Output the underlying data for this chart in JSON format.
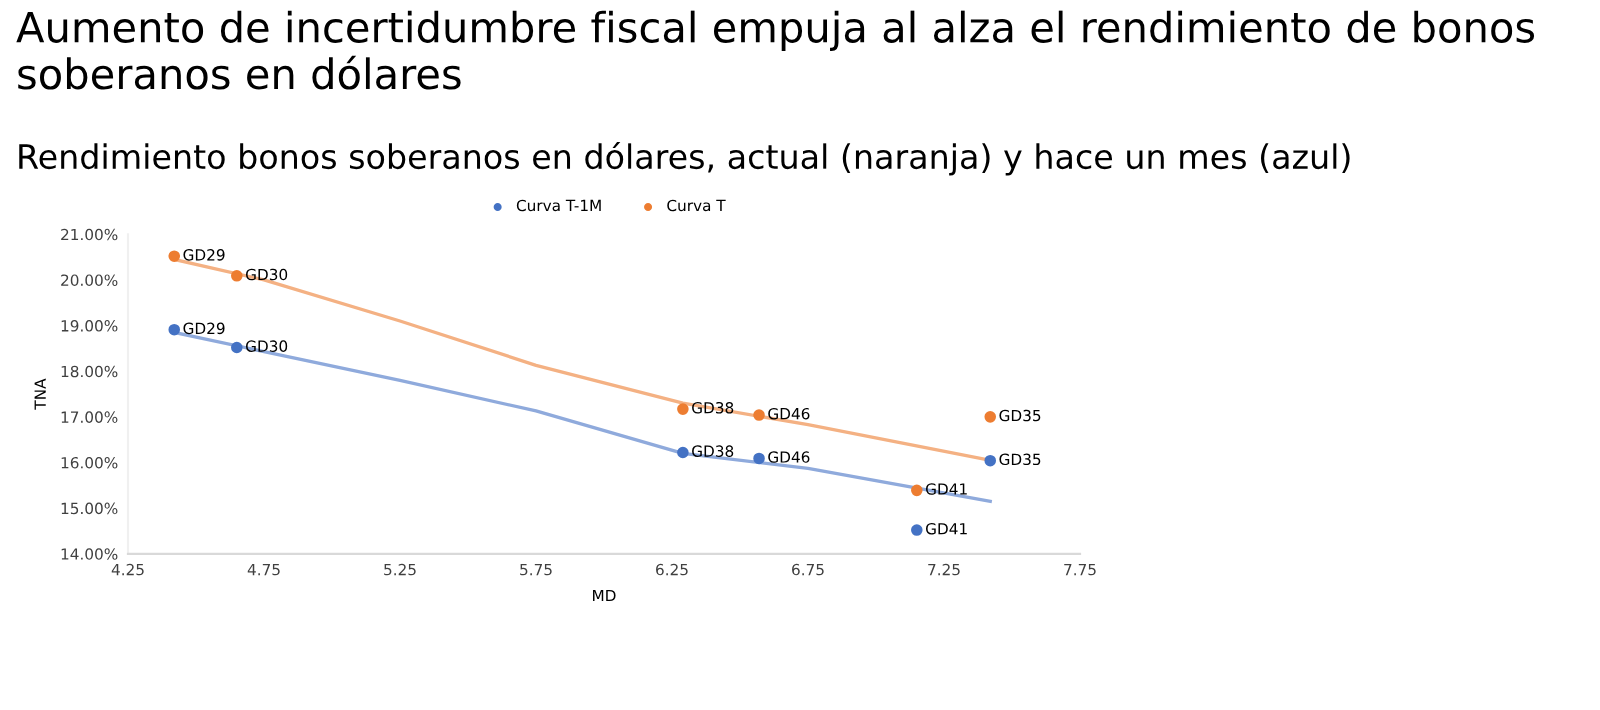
{
  "chart_data": {
    "type": "scatter",
    "title": "Aumento de incertidumbre fiscal empuja al alza el rendimiento de bonos soberanos en dólares",
    "subtitle": "Rendimiento bonos soberanos en dólares, actual (naranja) y hace un mes (azul)",
    "xlabel": "MD",
    "ylabel": "TNA",
    "series": [
      {
        "name": "Curva T-1M",
        "color": "#4472c4",
        "x": [
          4.42,
          4.65,
          6.29,
          6.57,
          7.15,
          7.42
        ],
        "values": [
          18.91,
          18.52,
          16.22,
          16.09,
          14.52,
          16.04
        ]
      },
      {
        "name": "Curva T",
        "color": "#ed7d31",
        "x": [
          4.42,
          4.65,
          6.29,
          6.57,
          7.15,
          7.42
        ],
        "values": [
          20.52,
          20.09,
          17.17,
          17.04,
          15.39,
          17.0
        ]
      },
      {
        "type": "line",
        "marker": "none",
        "color": "#8faadc",
        "x": [
          4.42,
          4.75,
          5.25,
          5.75,
          6.29,
          6.75,
          7.42
        ],
        "values": [
          18.85,
          18.43,
          17.8,
          17.13,
          16.2,
          15.87,
          15.15
        ]
      },
      {
        "type": "line",
        "marker": "none",
        "color": "#f4b183",
        "x": [
          4.42,
          4.75,
          5.25,
          5.75,
          6.29,
          6.75,
          7.42
        ],
        "values": [
          20.45,
          20.0,
          19.1,
          18.13,
          17.3,
          16.83,
          16.05
        ]
      }
    ],
    "annotations": [
      {
        "text": "GD29",
        "x": 4.42,
        "y": 18.91
      },
      {
        "text": "GD30",
        "x": 4.65,
        "y": 18.52
      },
      {
        "text": "GD38",
        "x": 6.29,
        "y": 16.22
      },
      {
        "text": "GD46",
        "x": 6.57,
        "y": 16.09
      },
      {
        "text": "GD41",
        "x": 7.15,
        "y": 14.52
      },
      {
        "text": "GD35",
        "x": 7.42,
        "y": 16.04
      },
      {
        "text": "GD29",
        "x": 4.42,
        "y": 20.52
      },
      {
        "text": "GD30",
        "x": 4.65,
        "y": 20.09
      },
      {
        "text": "GD38",
        "x": 6.29,
        "y": 17.17
      },
      {
        "text": "GD46",
        "x": 6.57,
        "y": 17.04
      },
      {
        "text": "GD41",
        "x": 7.15,
        "y": 15.39
      },
      {
        "text": "GD35",
        "x": 7.42,
        "y": 17.0
      }
    ],
    "xlim": [
      4.25,
      7.75
    ],
    "xticks": [
      4.25,
      4.75,
      5.25,
      5.75,
      6.25,
      6.75,
      7.25,
      7.75
    ],
    "ylim": [
      14,
      21
    ],
    "yticks": [
      {
        "value": 14,
        "label": "14.00%"
      },
      {
        "value": 15,
        "label": "15.00%"
      },
      {
        "value": 16,
        "label": "16.00%"
      },
      {
        "value": 17,
        "label": "17.00%"
      },
      {
        "value": 18,
        "label": "18.00%"
      },
      {
        "value": 19,
        "label": "19.00%"
      },
      {
        "value": 20,
        "label": "20.00%"
      },
      {
        "value": 21,
        "label": "21.00%"
      }
    ],
    "grid": false,
    "legend": "top",
    "marker": "circle"
  }
}
